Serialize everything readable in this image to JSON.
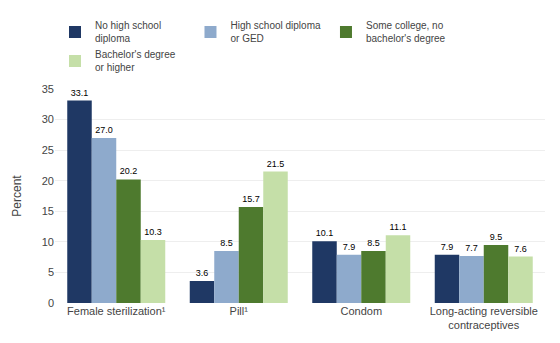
{
  "chart_data": {
    "type": "bar",
    "categories": [
      "Female sterilization¹",
      "Pill¹",
      "Condom",
      "Long-acting reversible\ncontraceptives"
    ],
    "series": [
      {
        "name": "No high school\ndiploma",
        "values": [
          33.1,
          3.6,
          10.1,
          7.9
        ],
        "value_labels": [
          "33.1",
          "3.6",
          "10.1",
          "7.9"
        ],
        "color": "#1f3864"
      },
      {
        "name": "High school diploma\nor GED",
        "values": [
          27.0,
          8.5,
          7.9,
          7.7
        ],
        "value_labels": [
          "27.0",
          "8.5",
          "7.9",
          "7.7"
        ],
        "color": "#8eaacc"
      },
      {
        "name": "Some college, no\nbachelor's degree",
        "values": [
          20.2,
          15.7,
          8.5,
          9.5
        ],
        "value_labels": [
          "20.2",
          "15.7",
          "8.5",
          "9.5"
        ],
        "color": "#4e7a2e"
      },
      {
        "name": "Bachelor's degree\nor higher",
        "values": [
          10.3,
          21.5,
          11.1,
          7.6
        ],
        "value_labels": [
          "10.3",
          "21.5",
          "11.1",
          "7.6"
        ],
        "color": "#c5dfa8"
      }
    ],
    "ylabel": "Percent",
    "ylim": [
      0,
      35
    ],
    "yticks": [
      0,
      5,
      10,
      15,
      20,
      25,
      30,
      35
    ],
    "grid": true,
    "data_labels": true,
    "legend": "top"
  }
}
